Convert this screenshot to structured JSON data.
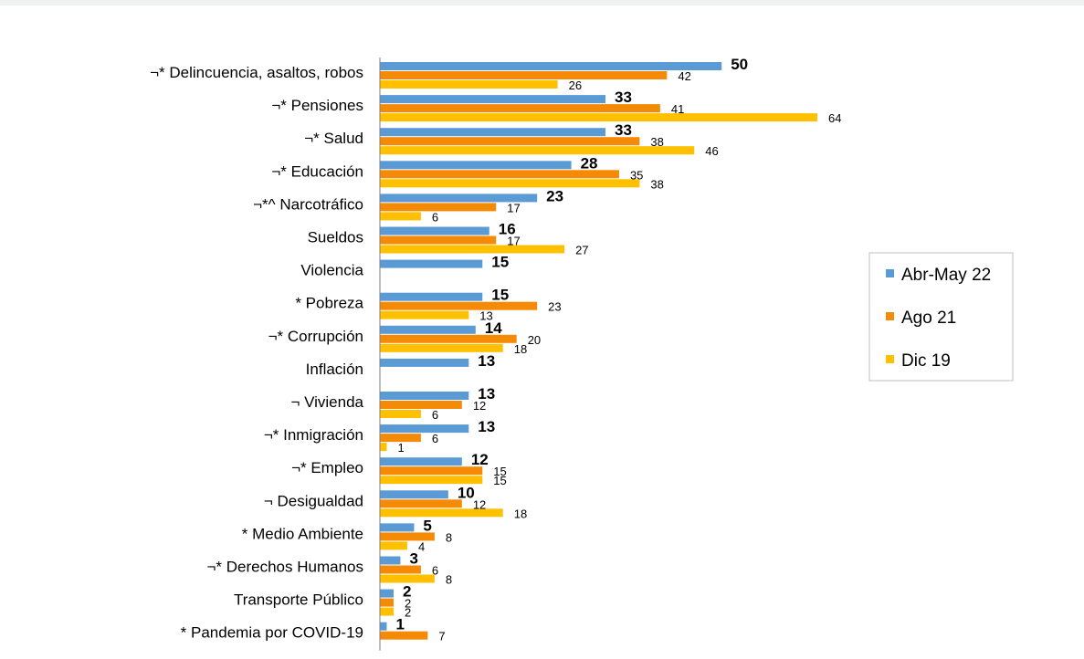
{
  "chart_data": {
    "type": "bar",
    "orientation": "horizontal",
    "categories": [
      "¬* Delincuencia, asaltos, robos",
      "¬* Pensiones",
      "¬* Salud",
      "¬* Educación",
      "¬*^ Narcotráfico",
      "Sueldos",
      "Violencia",
      "* Pobreza",
      "¬* Corrupción",
      "Inflación",
      "¬ Vivienda",
      "¬* Inmigración",
      "¬* Empleo",
      "¬ Desigualdad",
      "* Medio Ambiente",
      "¬* Derechos Humanos",
      "Transporte Público",
      "* Pandemia por COVID-19"
    ],
    "series": [
      {
        "name": "Abr-May 22",
        "color": "#5b9bd5",
        "label_style": "bold",
        "values": [
          50,
          33,
          33,
          28,
          23,
          16,
          15,
          15,
          14,
          13,
          13,
          13,
          12,
          10,
          5,
          3,
          2,
          1
        ]
      },
      {
        "name": "Ago 21",
        "color": "#f58a07",
        "label_style": "normal",
        "values": [
          42,
          41,
          38,
          35,
          17,
          17,
          null,
          23,
          20,
          null,
          12,
          6,
          15,
          12,
          8,
          6,
          2,
          7
        ]
      },
      {
        "name": "Dic 19",
        "color": "#ffc000",
        "label_style": "normal",
        "values": [
          26,
          64,
          46,
          38,
          6,
          27,
          null,
          13,
          18,
          null,
          6,
          1,
          15,
          18,
          4,
          8,
          2,
          null
        ]
      }
    ],
    "xlim": [
      0,
      64
    ],
    "grid": false,
    "legend_position": "right"
  }
}
